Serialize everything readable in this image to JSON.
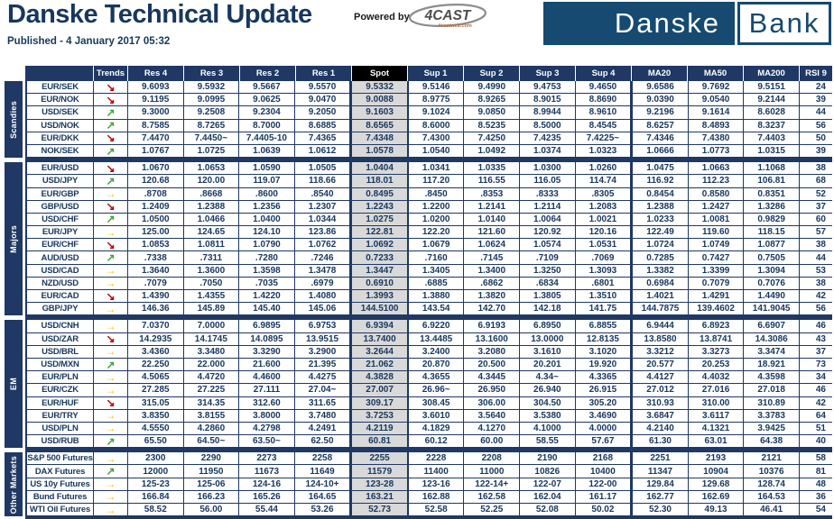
{
  "header": {
    "title": "Danske Technical Update",
    "published": "Published - 4 January 2017 05:32",
    "powered_by": "Powered by",
    "cast_logo": "4CAST",
    "cast_sub": "4castweb.com",
    "bank_left": "Danske",
    "bank_right": "Bank"
  },
  "colors": {
    "navy": "#1F3864",
    "title_navy": "#17375D",
    "spot_header_bg": "#000000",
    "spot_cell_bg": "#D9D9D9",
    "trend_up": "#3FA535",
    "trend_down": "#C00000",
    "trend_flat": "#FFC000",
    "logo_blue": "#164A70"
  },
  "trend_icons": {
    "up": "↗",
    "down": "↘",
    "flat": "→"
  },
  "table": {
    "columns": [
      "Trends",
      "Res 4",
      "Res 3",
      "Res 2",
      "Res 1",
      "Spot",
      "Sup 1",
      "Sup 2",
      "Sup 3",
      "Sup 4",
      "MA20",
      "MA50",
      "MA200",
      "RSI 9"
    ],
    "groups": [
      {
        "name": "Scandies",
        "rows": [
          {
            "label": "EUR/SEK",
            "trend": "down",
            "values": [
              "9.6093",
              "9.5932",
              "9.5667",
              "9.5570",
              "9.5332",
              "9.5146",
              "9.4990",
              "9.4753",
              "9.4650",
              "9.6586",
              "9.7692",
              "9.5151",
              "24"
            ]
          },
          {
            "label": "EUR/NOK",
            "trend": "down",
            "values": [
              "9.1195",
              "9.0995",
              "9.0625",
              "9.0470",
              "9.0088",
              "8.9775",
              "8.9265",
              "8.9015",
              "8.8690",
              "9.0390",
              "9.0540",
              "9.2144",
              "39"
            ]
          },
          {
            "label": "USD/SEK",
            "trend": "up",
            "values": [
              "9.3000",
              "9.2508",
              "9.2304",
              "9.2050",
              "9.1603",
              "9.1024",
              "9.0850",
              "8.9944",
              "8.9610",
              "9.2196",
              "9.1614",
              "8.6028",
              "44"
            ]
          },
          {
            "label": "USD/NOK",
            "trend": "up",
            "values": [
              "8.7585",
              "8.7265",
              "8.7000",
              "8.6885",
              "8.6565",
              "8.6000",
              "8.5235",
              "8.5000",
              "8.4545",
              "8.6257",
              "8.4893",
              "8.3237",
              "56"
            ]
          },
          {
            "label": "EUR/DKK",
            "trend": "down",
            "values": [
              "7.4470",
              "7.4450~",
              "7.4405-10",
              "7.4365",
              "7.4348",
              "7.4300",
              "7.4250",
              "7.4235",
              "7.4225~",
              "7.4346",
              "7.4380",
              "7.4403",
              "50"
            ]
          },
          {
            "label": "NOK/SEK",
            "trend": "up",
            "values": [
              "1.0767",
              "1.0725",
              "1.0639",
              "1.0612",
              "1.0578",
              "1.0540",
              "1.0492",
              "1.0374",
              "1.0323",
              "1.0666",
              "1.0773",
              "1.0315",
              "39"
            ]
          }
        ]
      },
      {
        "name": "Majors",
        "rows": [
          {
            "label": "EUR/USD",
            "trend": "down",
            "values": [
              "1.0670",
              "1.0653",
              "1.0590",
              "1.0505",
              "1.0404",
              "1.0341",
              "1.0335",
              "1.0300",
              "1.0260",
              "1.0475",
              "1.0663",
              "1.1068",
              "38"
            ]
          },
          {
            "label": "USD/JPY",
            "trend": "up",
            "values": [
              "120.68",
              "120.00",
              "119.07",
              "118.66",
              "118.01",
              "117.20",
              "116.55",
              "116.05",
              "114.74",
              "116.92",
              "112.23",
              "106.81",
              "68"
            ]
          },
          {
            "label": "EUR/GBP",
            "trend": "flat",
            "values": [
              ".8708",
              ".8668",
              ".8600",
              ".8540",
              "0.8495",
              ".8450",
              ".8353",
              ".8333",
              ".8305",
              "0.8454",
              "0.8580",
              "0.8351",
              "52"
            ]
          },
          {
            "label": "GBP/USD",
            "trend": "down",
            "values": [
              "1.2409",
              "1.2388",
              "1.2356",
              "1.2307",
              "1.2243",
              "1.2200",
              "1.2141",
              "1.2114",
              "1.2083",
              "1.2388",
              "1.2427",
              "1.3286",
              "37"
            ]
          },
          {
            "label": "USD/CHF",
            "trend": "up",
            "values": [
              "1.0500",
              "1.0466",
              "1.0400",
              "1.0344",
              "1.0275",
              "1.0200",
              "1.0140",
              "1.0064",
              "1.0021",
              "1.0233",
              "1.0081",
              "0.9829",
              "60"
            ]
          },
          {
            "label": "EUR/JPY",
            "trend": "flat",
            "values": [
              "125.00",
              "124.65",
              "124.10",
              "123.86",
              "122.81",
              "122.20",
              "121.60",
              "120.92",
              "120.16",
              "122.49",
              "119.60",
              "118.15",
              "57"
            ]
          },
          {
            "label": "EUR/CHF",
            "trend": "down",
            "values": [
              "1.0853",
              "1.0811",
              "1.0790",
              "1.0762",
              "1.0692",
              "1.0679",
              "1.0624",
              "1.0574",
              "1.0531",
              "1.0724",
              "1.0749",
              "1.0877",
              "38"
            ]
          },
          {
            "label": "AUD/USD",
            "trend": "up",
            "values": [
              ".7338",
              ".7311",
              ".7280",
              ".7246",
              "0.7233",
              ".7160",
              ".7145",
              ".7109",
              ".7069",
              "0.7285",
              "0.7427",
              "0.7505",
              "44"
            ]
          },
          {
            "label": "USD/CAD",
            "trend": "flat",
            "values": [
              "1.3640",
              "1.3600",
              "1.3598",
              "1.3478",
              "1.3447",
              "1.3405",
              "1.3400",
              "1.3250",
              "1.3093",
              "1.3382",
              "1.3399",
              "1.3094",
              "53"
            ]
          },
          {
            "label": "NZD/USD",
            "trend": "flat",
            "values": [
              ".7079",
              ".7050",
              ".7035",
              ".6979",
              "0.6910",
              ".6885",
              ".6862",
              ".6834",
              ".6801",
              "0.6984",
              "0.7079",
              "0.7076",
              "38"
            ]
          },
          {
            "label": "EUR/CAD",
            "trend": "down",
            "values": [
              "1.4390",
              "1.4355",
              "1.4220",
              "1.4080",
              "1.3993",
              "1.3880",
              "1.3820",
              "1.3805",
              "1.3510",
              "1.4021",
              "1.4291",
              "1.4490",
              "42"
            ]
          },
          {
            "label": "GBP/JPY",
            "trend": "flat",
            "values": [
              "146.36",
              "145.89",
              "145.40",
              "145.06",
              "144.5100",
              "143.54",
              "142.70",
              "142.18",
              "141.75",
              "144.7875",
              "139.4602",
              "141.9045",
              "56"
            ]
          }
        ]
      },
      {
        "name": "EM",
        "rows": [
          {
            "label": "USD/CNH",
            "trend": "flat",
            "values": [
              "7.0370",
              "7.0000",
              "6.9895",
              "6.9753",
              "6.9394",
              "6.9220",
              "6.9193",
              "6.8950",
              "6.8855",
              "6.9444",
              "6.8923",
              "6.6907",
              "46"
            ]
          },
          {
            "label": "USD/ZAR",
            "trend": "down",
            "values": [
              "14.2935",
              "14.1745",
              "14.0895",
              "13.9515",
              "13.7400",
              "13.4485",
              "13.1600",
              "13.0000",
              "12.8135",
              "13.8580",
              "13.8741",
              "14.3086",
              "43"
            ]
          },
          {
            "label": "USD/BRL",
            "trend": "flat",
            "values": [
              "3.4360",
              "3.3480",
              "3.3290",
              "3.2900",
              "3.2644",
              "3.2400",
              "3.2080",
              "3.1610",
              "3.1020",
              "3.3212",
              "3.3273",
              "3.3474",
              "37"
            ]
          },
          {
            "label": "USD/MXN",
            "trend": "up",
            "values": [
              "22.250",
              "22.000",
              "21.600",
              "21.395",
              "21.062",
              "20.870",
              "20.500",
              "20.201",
              "19.920",
              "20.577",
              "20.253",
              "18.921",
              "73"
            ]
          },
          {
            "label": "EUR/PLN",
            "trend": "flat",
            "values": [
              "4.5065",
              "4.4720",
              "4.4600",
              "4.4275",
              "4.3828",
              "4.3655",
              "4.3445",
              "4.34~",
              "4.3365",
              "4.4127",
              "4.4032",
              "4.3598",
              "34"
            ]
          },
          {
            "label": "EUR/CZK",
            "trend": "flat",
            "values": [
              "27.285",
              "27.225",
              "27.111",
              "27.04~",
              "27.007",
              "26.96~",
              "26.950",
              "26.940",
              "26.915",
              "27.012",
              "27.016",
              "27.018",
              "46"
            ]
          },
          {
            "label": "EUR/HUF",
            "trend": "down",
            "values": [
              "315.05",
              "314.35",
              "312.60",
              "311.65",
              "309.17",
              "308.45",
              "306.00",
              "304.50",
              "305.20",
              "310.93",
              "310.00",
              "310.89",
              "42"
            ]
          },
          {
            "label": "EUR/TRY",
            "trend": "flat",
            "values": [
              "3.8350",
              "3.8155",
              "3.8000",
              "3.7480",
              "3.7253",
              "3.6010",
              "3.5640",
              "3.5380",
              "3.4690",
              "3.6847",
              "3.6117",
              "3.3783",
              "64"
            ]
          },
          {
            "label": "USD/PLN",
            "trend": "flat",
            "values": [
              "4.5550",
              "4.2860",
              "4.2798",
              "4.2491",
              "4.2119",
              "4.1829",
              "4.1270",
              "4.1000",
              "4.0000",
              "4.2140",
              "4.1321",
              "3.9425",
              "51"
            ]
          },
          {
            "label": "USD/RUB",
            "trend": "up",
            "values": [
              "65.50",
              "64.50~",
              "63.50~",
              "62.50",
              "60.81",
              "60.12",
              "60.00",
              "58.55",
              "57.67",
              "61.30",
              "63.01",
              "64.38",
              "40"
            ]
          }
        ]
      },
      {
        "name": "Other Markets",
        "rows": [
          {
            "label": "S&P 500 Futures",
            "trend": "flat",
            "values": [
              "2300",
              "2290",
              "2273",
              "2258",
              "2255",
              "2228",
              "2208",
              "2190",
              "2168",
              "2251",
              "2193",
              "2121",
              "58"
            ]
          },
          {
            "label": "DAX Futures",
            "trend": "up",
            "values": [
              "12000",
              "11950",
              "11673",
              "11649",
              "11579",
              "11400",
              "11000",
              "10826",
              "10400",
              "11347",
              "10904",
              "10376",
              "81"
            ]
          },
          {
            "label": "US 10y Futures",
            "trend": "flat",
            "values": [
              "125-23",
              "125-06",
              "124-16",
              "124-10+",
              "123-28",
              "123-16",
              "122-14+",
              "122-07",
              "122-00",
              "129.84",
              "129.68",
              "128.74",
              "48"
            ]
          },
          {
            "label": "Bund Futures",
            "trend": "flat",
            "values": [
              "166.84",
              "166.23",
              "165.26",
              "164.65",
              "163.21",
              "162.88",
              "162.58",
              "162.04",
              "161.17",
              "162.77",
              "162.69",
              "164.53",
              "36"
            ]
          },
          {
            "label": "WTI Oil Futures",
            "trend": "flat",
            "values": [
              "58.52",
              "56.00",
              "55.44",
              "53.26",
              "52.73",
              "52.58",
              "52.25",
              "52.08",
              "50.02",
              "52.30",
              "49.13",
              "46.41",
              "54"
            ]
          }
        ]
      }
    ]
  }
}
